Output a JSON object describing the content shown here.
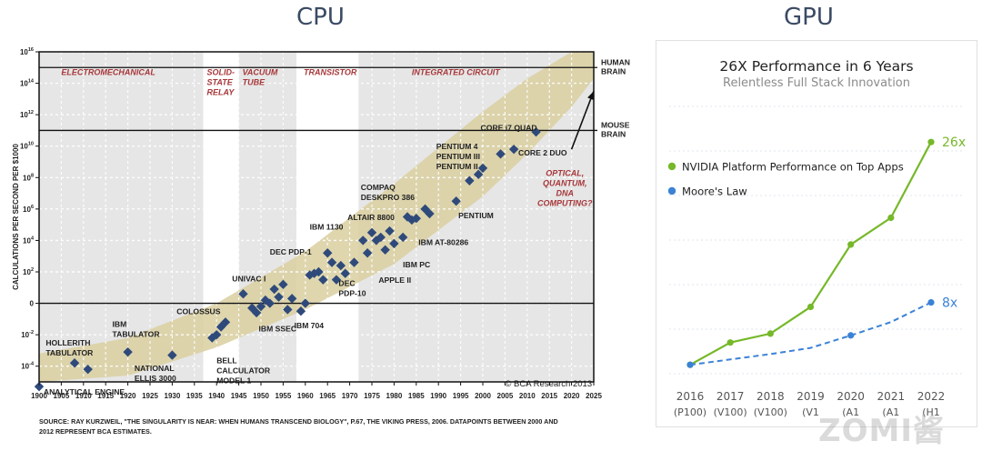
{
  "headings": {
    "cpu": "CPU",
    "gpu": "GPU"
  },
  "chart_data": [
    {
      "type": "scatter",
      "title": "",
      "ylabel": "CALCULATIONS PER SECOND PER $1000",
      "y_scale": "log",
      "xlim": [
        1900,
        2025
      ],
      "ylim": [
        -5,
        16
      ],
      "x_ticks": [
        "1900",
        "1905",
        "1910",
        "1915",
        "1920",
        "1925",
        "1930",
        "1935",
        "1940",
        "1945",
        "1950",
        "1955",
        "1960",
        "1965",
        "1970",
        "1975",
        "1980",
        "1985",
        "1990",
        "1995",
        "2000",
        "2005",
        "2010",
        "2015",
        "2020",
        "2025"
      ],
      "y_ticks": [
        {
          "e": 16,
          "base": "10",
          "exp": "16"
        },
        {
          "e": 14,
          "base": "10",
          "exp": "14"
        },
        {
          "e": 12,
          "base": "10",
          "exp": "12"
        },
        {
          "e": 10,
          "base": "10",
          "exp": "10"
        },
        {
          "e": 8,
          "base": "10",
          "exp": "8"
        },
        {
          "e": 6,
          "base": "10",
          "exp": "6"
        },
        {
          "e": 4,
          "base": "10",
          "exp": "4"
        },
        {
          "e": 2,
          "base": "10",
          "exp": "2"
        },
        {
          "e": 0,
          "base": "0",
          "exp": ""
        },
        {
          "e": -2,
          "base": "10",
          "exp": "-2"
        },
        {
          "e": -4,
          "base": "10",
          "exp": "-4"
        }
      ],
      "eras": [
        {
          "label": [
            "ELECTROMECHANICAL"
          ],
          "from": 1900,
          "to": 1937
        },
        {
          "label": [
            "SOLID-",
            "STATE",
            "RELAY"
          ],
          "from": 1937,
          "to": 1945
        },
        {
          "label": [
            "VACUUM",
            "TUBE"
          ],
          "from": 1945,
          "to": 1958
        },
        {
          "label": [
            "TRANSISTOR"
          ],
          "from": 1958,
          "to": 1972
        },
        {
          "label": [
            "INTEGRATED CIRCUIT"
          ],
          "from": 1972,
          "to": 2025
        }
      ],
      "thresholds": [
        {
          "label": [
            "HUMAN",
            "BRAIN"
          ],
          "e": 15
        },
        {
          "label": [
            "MOUSE",
            "BRAIN"
          ],
          "e": 11
        }
      ],
      "band": {
        "lower": [
          [
            1900,
            -5.5
          ],
          [
            1920,
            -4.6
          ],
          [
            1940,
            -2.8
          ],
          [
            1960,
            -0.4
          ],
          [
            1980,
            2.5
          ],
          [
            2000,
            6.8
          ],
          [
            2010,
            9.5
          ],
          [
            2020,
            12.5
          ],
          [
            2025,
            14.3
          ]
        ],
        "upper": [
          [
            1900,
            -3.2
          ],
          [
            1920,
            -2.2
          ],
          [
            1940,
            0.0
          ],
          [
            1960,
            3.3
          ],
          [
            1980,
            7.6
          ],
          [
            2000,
            12.2
          ],
          [
            2010,
            14.3
          ],
          [
            2020,
            16.0
          ],
          [
            2025,
            16.0
          ]
        ]
      },
      "arrow": {
        "from": [
          2020,
          9.8
        ],
        "to": [
          2025,
          13.5
        ]
      },
      "points": [
        [
          1900,
          -5.3
        ],
        [
          1908,
          -3.8
        ],
        [
          1911,
          -4.2
        ],
        [
          1920,
          -3.1
        ],
        [
          1930,
          -3.3
        ],
        [
          1939,
          -2.2
        ],
        [
          1940,
          -2.0
        ],
        [
          1941,
          -1.5
        ],
        [
          1942,
          -1.2
        ],
        [
          1946,
          0.6
        ],
        [
          1948,
          -0.3
        ],
        [
          1949,
          -0.6
        ],
        [
          1950,
          -0.2
        ],
        [
          1951,
          0.2
        ],
        [
          1952,
          0.0
        ],
        [
          1953,
          0.9
        ],
        [
          1954,
          0.4
        ],
        [
          1955,
          1.2
        ],
        [
          1956,
          -0.4
        ],
        [
          1957,
          0.3
        ],
        [
          1959,
          -0.5
        ],
        [
          1960,
          0.0
        ],
        [
          1961,
          1.8
        ],
        [
          1962,
          1.9
        ],
        [
          1963,
          2.0
        ],
        [
          1964,
          1.5
        ],
        [
          1965,
          3.2
        ],
        [
          1966,
          2.6
        ],
        [
          1967,
          1.5
        ],
        [
          1968,
          2.4
        ],
        [
          1969,
          1.9
        ],
        [
          1971,
          2.6
        ],
        [
          1973,
          4.0
        ],
        [
          1974,
          3.2
        ],
        [
          1975,
          4.5
        ],
        [
          1976,
          4.0
        ],
        [
          1977,
          4.2
        ],
        [
          1978,
          3.4
        ],
        [
          1979,
          4.6
        ],
        [
          1980,
          3.8
        ],
        [
          1982,
          4.2
        ],
        [
          1983,
          5.5
        ],
        [
          1984,
          5.3
        ],
        [
          1985,
          5.4
        ],
        [
          1987,
          6.0
        ],
        [
          1988,
          5.7
        ],
        [
          1994,
          6.5
        ],
        [
          1997,
          7.8
        ],
        [
          1999,
          8.2
        ],
        [
          2000,
          8.6
        ],
        [
          2004,
          9.5
        ],
        [
          2007,
          9.8
        ],
        [
          2012,
          10.9
        ]
      ],
      "annotations": [
        {
          "text": [
            "ANALYTICAL ENGINE"
          ],
          "x": 1901.0,
          "e": -5.8
        },
        {
          "text": [
            "HOLLERITH",
            "TABULATOR"
          ],
          "x": 1901.5,
          "e": -2.7
        },
        {
          "text": [
            "IBM",
            "TABULATOR"
          ],
          "x": 1916.5,
          "e": -1.5
        },
        {
          "text": [
            "NATIONAL",
            "ELLIS 3000"
          ],
          "x": 1921.5,
          "e": -4.3
        },
        {
          "text": [
            "COLOSSUS"
          ],
          "x": 1931.0,
          "e": -0.7
        },
        {
          "text": [
            "BELL",
            "CALCULATOR",
            "MODEL 1"
          ],
          "x": 1940.0,
          "e": -3.8
        },
        {
          "text": [
            "UNIVAC I"
          ],
          "x": 1943.5,
          "e": 1.4
        },
        {
          "text": [
            "IBM SSEC"
          ],
          "x": 1949.5,
          "e": -1.8
        },
        {
          "text": [
            "IBM 704"
          ],
          "x": 1957.5,
          "e": -1.6
        },
        {
          "text": [
            "DEC PDP-1"
          ],
          "x": 1952.0,
          "e": 3.1
        },
        {
          "text": [
            "IBM 1130"
          ],
          "x": 1961.0,
          "e": 4.7
        },
        {
          "text": [
            "DEC",
            "PDP-10"
          ],
          "x": 1967.5,
          "e": 1.1
        },
        {
          "text": [
            "ALTAIR 8800"
          ],
          "x": 1969.5,
          "e": 5.3
        },
        {
          "text": [
            "COMPAQ",
            "DESKPRO 386"
          ],
          "x": 1972.5,
          "e": 7.2
        },
        {
          "text": [
            "APPLE II"
          ],
          "x": 1976.5,
          "e": 1.3
        },
        {
          "text": [
            "IBM PC"
          ],
          "x": 1982.0,
          "e": 2.3
        },
        {
          "text": [
            "IBM AT-80286"
          ],
          "x": 1985.5,
          "e": 3.7
        },
        {
          "text": [
            "PENTIUM"
          ],
          "x": 1994.5,
          "e": 5.4
        },
        {
          "text": [
            "PENTIUM 4",
            "PENTIUM III",
            "PENTIUM II"
          ],
          "x": 1989.5,
          "e": 9.8
        },
        {
          "text": [
            "CORE i7 QUAD"
          ],
          "x": 1999.5,
          "e": 11.0
        },
        {
          "text": [
            "CORE 2 DUO"
          ],
          "x": 2008.0,
          "e": 9.4
        },
        {
          "text": [
            "OPTICAL,",
            "QUANTUM,",
            "DNA",
            "COMPUTING?"
          ],
          "x": 2018.5,
          "e": 8.1
        }
      ],
      "copyright": "© BCA Research 2013",
      "source": [
        "SOURCE: RAY KURZWEIL, \"THE SINGULARITY IS NEAR: WHEN HUMANS TRANSCEND BIOLOGY\", P.67, THE VIKING PRESS, 2006. DATAPOINTS BETWEEN 2000 AND",
        "2012 REPRESENT BCA ESTIMATES."
      ]
    },
    {
      "type": "line",
      "title": "26X Performance in 6 Years",
      "subtitle": "Relentless Full Stack Innovation",
      "categories": [
        "2016",
        "2017",
        "2018",
        "2019",
        "2020",
        "2021",
        "2022"
      ],
      "category_sublabels": [
        "(P100)",
        "(V100)",
        "(V100)",
        "(V1",
        "(A1",
        "(A1",
        "(H1"
      ],
      "ylim": [
        0,
        30
      ],
      "legend_position": "top-left",
      "series": [
        {
          "name": "NVIDIA Platform Performance on Top Apps",
          "values": [
            1,
            3.5,
            4.5,
            7.5,
            14.5,
            17.5,
            26
          ],
          "color": "#76b82a",
          "style": "solid",
          "end_label": "26x"
        },
        {
          "name": "Moore's Law",
          "values": [
            1,
            1.6,
            2.2,
            2.9,
            4.3,
            5.8,
            8
          ],
          "color": "#3b82d6",
          "style": "dashed",
          "end_label": "8x"
        }
      ]
    }
  ],
  "watermark": "ZOMI酱"
}
